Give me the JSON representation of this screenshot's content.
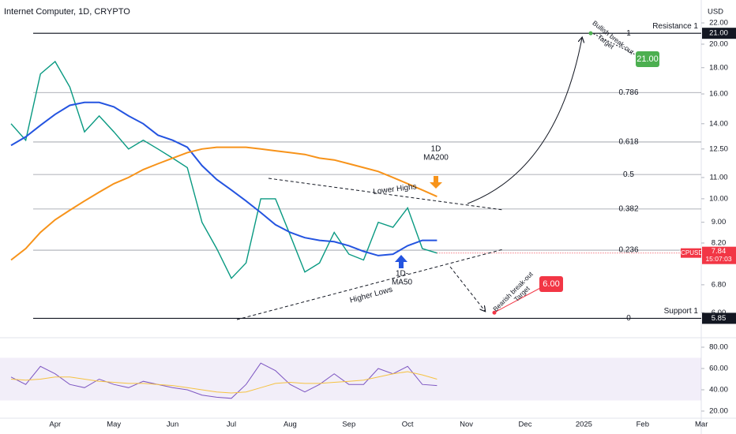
{
  "chart_data": [
    {
      "type": "line",
      "title": "Internet Computer, 1D, CRYPTO",
      "currency": "USD",
      "log_scale": true,
      "categories": [
        null,
        null,
        null,
        "Apr",
        null,
        null,
        null,
        "May",
        null,
        null,
        null,
        "Jun",
        null,
        null,
        null,
        "Jul",
        null,
        null,
        null,
        "Aug",
        null,
        null,
        null,
        "Sep",
        null,
        null,
        null,
        "Oct",
        null,
        null,
        null,
        "Nov",
        null,
        null,
        null,
        "Dec",
        null,
        null,
        null,
        "2025",
        null,
        null,
        null,
        "Feb",
        null,
        null,
        null,
        "Mar"
      ],
      "ylim": [
        5.42,
        23.7
      ],
      "yticks": [
        {
          "value": 6,
          "label": "6.00"
        },
        {
          "value": 6.8,
          "label": "6.80"
        },
        {
          "value": 8.2,
          "label": "8.20"
        },
        {
          "value": 9,
          "label": "9.00"
        },
        {
          "value": 10,
          "label": "10.00"
        },
        {
          "value": 11,
          "label": "11.00"
        },
        {
          "value": 12.5,
          "label": "12.50"
        },
        {
          "value": 14,
          "label": "14.00"
        },
        {
          "value": 16,
          "label": "16.00"
        },
        {
          "value": 18,
          "label": "18.00"
        },
        {
          "value": 20,
          "label": "20.00"
        },
        {
          "value": 22,
          "label": "22.00"
        }
      ],
      "series": [
        {
          "name": "ICPUSD",
          "color": "#089981",
          "countdown": "15:07:03",
          "tag_color": "#f23645",
          "values": [
            14.0,
            13.0,
            17.5,
            18.5,
            16.5,
            13.5,
            14.5,
            13.5,
            12.5,
            13.0,
            12.5,
            12.0,
            11.5,
            9.0,
            8.0,
            7.0,
            7.5,
            10.0,
            10.0,
            8.5,
            7.2,
            7.5,
            8.6,
            7.8,
            7.6,
            9.0,
            8.8,
            9.6,
            8.0,
            7.84,
            null,
            null,
            null,
            null,
            null,
            null,
            null,
            null,
            null,
            null,
            null,
            null,
            null,
            null,
            null,
            null,
            null,
            null
          ]
        },
        {
          "label": [
            "1D-",
            "MA50"
          ],
          "color": "#2454e0",
          "values": [
            12.7,
            13.2,
            13.9,
            14.6,
            15.2,
            15.4,
            15.4,
            15.1,
            14.5,
            14.0,
            13.3,
            13.0,
            12.6,
            11.6,
            10.9,
            10.4,
            9.9,
            9.4,
            8.9,
            8.6,
            8.4,
            8.3,
            8.25,
            8.1,
            7.9,
            7.75,
            7.8,
            8.1,
            8.3,
            8.3,
            null,
            null,
            null,
            null,
            null,
            null,
            null,
            null,
            null,
            null,
            null,
            null,
            null,
            null,
            null,
            null,
            null,
            null
          ]
        },
        {
          "label": [
            "1D",
            "MA200"
          ],
          "color": "#f7931a",
          "values": [
            7.6,
            8.0,
            8.6,
            9.1,
            9.5,
            9.9,
            10.3,
            10.7,
            11.0,
            11.4,
            11.7,
            12.0,
            12.3,
            12.5,
            12.6,
            12.6,
            12.6,
            12.5,
            12.4,
            12.3,
            12.2,
            12.0,
            11.9,
            11.7,
            11.5,
            11.3,
            11.0,
            10.7,
            10.4,
            10.1,
            null,
            null,
            null,
            null,
            null,
            null,
            null,
            null,
            null,
            null,
            null,
            null,
            null,
            null,
            null,
            null,
            null,
            null
          ]
        }
      ],
      "levels": [
        {
          "name": "Resistance 1",
          "price": {
            "value": 21,
            "label": "21.00"
          }
        },
        {
          "name": "Support 1",
          "price": 5.85
        }
      ],
      "fib_levels": [
        {
          "ratio": "1",
          "price": 21
        },
        {
          "ratio": "0.786",
          "price": 16.1
        },
        {
          "ratio": "0.618",
          "price": 12.9
        },
        {
          "ratio": "0.5",
          "price": 11.15
        },
        {
          "ratio": "0.382",
          "price": 9.55
        },
        {
          "ratio": "0.236",
          "price": 7.94
        },
        {
          "ratio": "0",
          "price": 5.85
        }
      ],
      "targets": [
        {
          "text_lines": [
            "Bullish break-out",
            "Target"
          ],
          "price": {
            "value": 21,
            "label": "21.00"
          },
          "color": "#4caf50"
        },
        {
          "text_lines": [
            "Bearish break-out",
            "Target"
          ],
          "price": {
            "value": 6,
            "label": "6.00"
          },
          "color": "#f23645"
        }
      ],
      "annotations": [
        "Lower Highs",
        "Higher Lows"
      ]
    },
    {
      "type": "line",
      "ylim": [
        13.3,
        88.9
      ],
      "band": [
        30,
        70
      ],
      "yticks": [
        {
          "value": 20,
          "label": "20.00"
        },
        {
          "value": 40,
          "label": "40.00"
        },
        {
          "value": 60,
          "label": "60.00"
        },
        {
          "value": 80,
          "label": "80.00"
        }
      ],
      "series": [
        {
          "color": "#7e57c2",
          "values": [
            52,
            45,
            62,
            55,
            45,
            42,
            50,
            45,
            42,
            48,
            45,
            42,
            40,
            35,
            33,
            32,
            45,
            65,
            58,
            45,
            38,
            45,
            55,
            45,
            45,
            60,
            55,
            62,
            45,
            44,
            null,
            null,
            null,
            null,
            null,
            null,
            null,
            null,
            null,
            null,
            null,
            null,
            null,
            null,
            null,
            null,
            null,
            null
          ]
        },
        {
          "color": "#f5c242",
          "values": [
            50,
            49,
            50,
            52,
            52,
            50,
            48,
            47,
            46,
            46,
            45,
            44,
            42,
            40,
            38,
            37,
            38,
            42,
            46,
            47,
            46,
            46,
            47,
            48,
            49,
            52,
            55,
            57,
            54,
            50,
            null,
            null,
            null,
            null,
            null,
            null,
            null,
            null,
            null,
            null,
            null,
            null,
            null,
            null,
            null,
            null,
            null,
            null
          ]
        }
      ]
    }
  ]
}
